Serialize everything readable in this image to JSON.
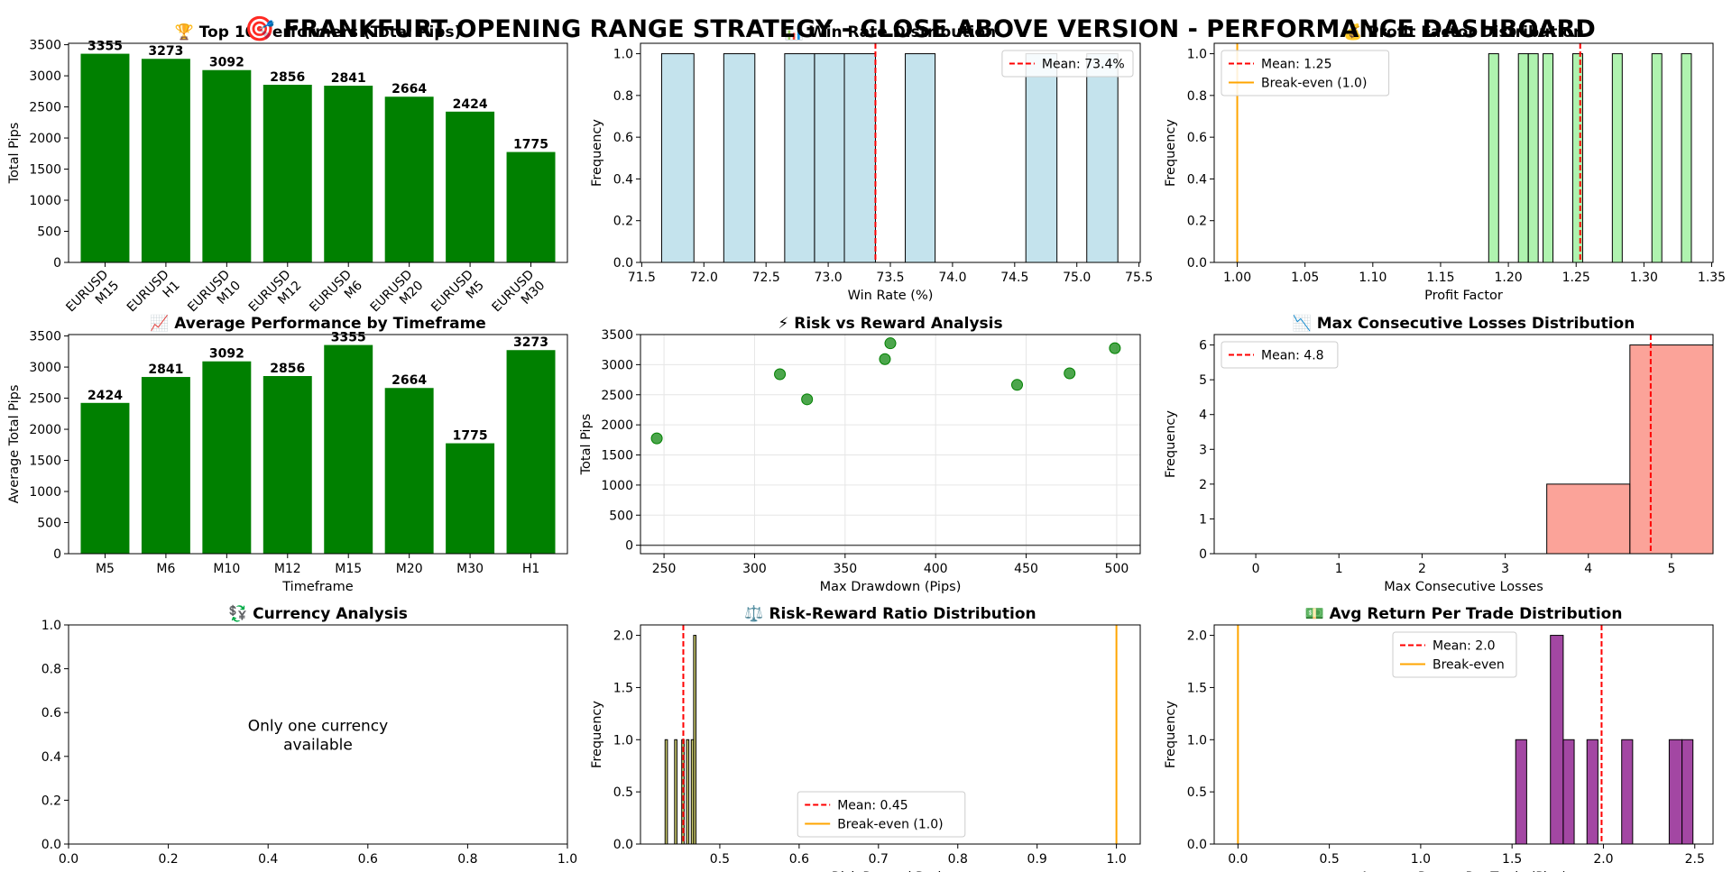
{
  "title": "🎯 FRANKFURT OPENING RANGE STRATEGY - CLOSE ABOVE VERSION - PERFORMANCE DASHBOARD",
  "chart_data": [
    {
      "id": "top10",
      "type": "bar",
      "title": "🏆 Top 10 Performers (Total Pips)",
      "xlabel": "",
      "ylabel": "Total Pips",
      "categories": [
        "EURUSD\nM15",
        "EURUSD\nH1",
        "EURUSD\nM10",
        "EURUSD\nM12",
        "EURUSD\nM6",
        "EURUSD\nM20",
        "EURUSD\nM5",
        "EURUSD\nM30"
      ],
      "values": [
        3355,
        3273,
        3092,
        2856,
        2841,
        2664,
        2424,
        1775
      ],
      "value_labels": [
        "3355",
        "3273",
        "3092",
        "2856",
        "2841",
        "2664",
        "2424",
        "1775"
      ],
      "ylim": [
        0,
        3523
      ],
      "yticks": [
        0,
        500,
        1000,
        1500,
        2000,
        2500,
        3000,
        3500
      ],
      "bar_color": "#008000",
      "rotated_xticks": true
    },
    {
      "id": "winrate",
      "type": "histogram",
      "title": "📊 Win Rate Distribution",
      "xlabel": "Win Rate (%)",
      "ylabel": "Frequency",
      "xlim": [
        71.49,
        75.51
      ],
      "ylim": [
        0,
        1.05
      ],
      "xticks": [
        71.5,
        72.0,
        72.5,
        73.0,
        73.5,
        74.0,
        74.5,
        75.0,
        75.5
      ],
      "xtick_labels": [
        "71.5",
        "72.0",
        "72.5",
        "73.0",
        "73.5",
        "74.0",
        "74.5",
        "75.0",
        "75.5"
      ],
      "yticks": [
        0,
        0.2,
        0.4,
        0.6,
        0.8,
        1.0
      ],
      "ytick_labels": [
        "0.0",
        "0.2",
        "0.4",
        "0.6",
        "0.8",
        "1.0"
      ],
      "bins": [
        [
          71.66,
          71.92,
          1
        ],
        [
          72.16,
          72.41,
          1
        ],
        [
          72.65,
          72.89,
          1
        ],
        [
          72.89,
          73.13,
          1
        ],
        [
          73.13,
          73.38,
          1
        ],
        [
          73.62,
          73.86,
          1
        ],
        [
          74.59,
          74.84,
          1
        ],
        [
          75.08,
          75.33,
          1
        ]
      ],
      "bar_color": "#add8e6",
      "lines": [
        {
          "x": 73.38,
          "color": "#ff0000",
          "dash": true,
          "label": "Mean: 73.4%"
        }
      ],
      "legend": "upper-right"
    },
    {
      "id": "profitfactor",
      "type": "histogram",
      "title": "💰 Profit Factor Distribution",
      "xlabel": "Profit Factor",
      "ylabel": "Frequency",
      "xlim": [
        0.983,
        1.351
      ],
      "ylim": [
        0,
        1.05
      ],
      "xticks": [
        1.0,
        1.05,
        1.1,
        1.15,
        1.2,
        1.25,
        1.3,
        1.35
      ],
      "xtick_labels": [
        "1.00",
        "1.05",
        "1.10",
        "1.15",
        "1.20",
        "1.25",
        "1.30",
        "1.35"
      ],
      "yticks": [
        0,
        0.2,
        0.4,
        0.6,
        0.8,
        1.0
      ],
      "ytick_labels": [
        "0.0",
        "0.2",
        "0.4",
        "0.6",
        "0.8",
        "1.0"
      ],
      "bins": [
        [
          1.1855,
          1.1928,
          1
        ],
        [
          1.2074,
          1.2147,
          1
        ],
        [
          1.2147,
          1.222,
          1
        ],
        [
          1.2256,
          1.2329,
          1
        ],
        [
          1.2475,
          1.2548,
          1
        ],
        [
          1.2767,
          1.284,
          1
        ],
        [
          1.3059,
          1.3132,
          1
        ],
        [
          1.3277,
          1.335,
          1
        ]
      ],
      "bar_color": "#90ee90",
      "lines": [
        {
          "x": 1.253,
          "color": "#ff0000",
          "dash": true,
          "label": "Mean: 1.25"
        },
        {
          "x": 1.0,
          "color": "#ffa500",
          "dash": false,
          "label": "Break-even (1.0)"
        }
      ],
      "legend": "upper-left"
    },
    {
      "id": "timeframe",
      "type": "bar",
      "title": "📈 Average Performance by Timeframe",
      "xlabel": "Timeframe",
      "ylabel": "Average Total Pips",
      "categories": [
        "M5",
        "M6",
        "M10",
        "M12",
        "M15",
        "M20",
        "M30",
        "H1"
      ],
      "values": [
        2424,
        2841,
        3092,
        2856,
        3355,
        2664,
        1775,
        3273
      ],
      "value_labels": [
        "2424",
        "2841",
        "3092",
        "2856",
        "3355",
        "2664",
        "1775",
        "3273"
      ],
      "ylim": [
        0,
        3523
      ],
      "yticks": [
        0,
        500,
        1000,
        1500,
        2000,
        2500,
        3000,
        3500
      ],
      "bar_color": "#008000",
      "rotated_xticks": false
    },
    {
      "id": "riskreward",
      "type": "scatter",
      "title": "⚡ Risk vs Reward Analysis",
      "xlabel": "Max Drawdown (Pips)",
      "ylabel": "Total Pips",
      "xlim": [
        237,
        513
      ],
      "ylim": [
        -140,
        3500
      ],
      "xticks": [
        250,
        300,
        350,
        400,
        450,
        500
      ],
      "yticks": [
        0,
        500,
        1000,
        1500,
        2000,
        2500,
        3000,
        3500
      ],
      "points": [
        [
          246,
          1775
        ],
        [
          314,
          2841
        ],
        [
          329,
          2424
        ],
        [
          372,
          3092
        ],
        [
          375,
          3355
        ],
        [
          445,
          2664
        ],
        [
          474,
          2856
        ],
        [
          499,
          3273
        ]
      ],
      "point_color": "#008000",
      "hline": 0,
      "grid": true
    },
    {
      "id": "consecutive",
      "type": "histogram",
      "title": "📉 Max Consecutive Losses Distribution",
      "xlabel": "Max Consecutive Losses",
      "ylabel": "Frequency",
      "xlim": [
        -0.5,
        5.5
      ],
      "ylim": [
        0,
        6.3
      ],
      "xticks": [
        0,
        1,
        2,
        3,
        4,
        5
      ],
      "xtick_labels": [
        "0",
        "1",
        "2",
        "3",
        "4",
        "5"
      ],
      "yticks": [
        0,
        1,
        2,
        3,
        4,
        5,
        6
      ],
      "ytick_labels": [
        "0",
        "1",
        "2",
        "3",
        "4",
        "5",
        "6"
      ],
      "bins": [
        [
          3.5,
          4.5,
          2
        ],
        [
          4.5,
          5.5,
          6
        ]
      ],
      "bar_color": "#fa8072",
      "lines": [
        {
          "x": 4.75,
          "color": "#ff0000",
          "dash": true,
          "label": "Mean: 4.8"
        }
      ],
      "legend": "upper-left"
    },
    {
      "id": "currency",
      "type": "empty",
      "title": "💱 Currency Analysis",
      "message": "Only one currency\navailable",
      "xlim": [
        0,
        1
      ],
      "ylim": [
        0,
        1
      ],
      "xticks": [
        0,
        0.2,
        0.4,
        0.6,
        0.8,
        1.0
      ],
      "xtick_labels": [
        "0.0",
        "0.2",
        "0.4",
        "0.6",
        "0.8",
        "1.0"
      ],
      "yticks": [
        0,
        0.2,
        0.4,
        0.6,
        0.8,
        1.0
      ],
      "ytick_labels": [
        "0.0",
        "0.2",
        "0.4",
        "0.6",
        "0.8",
        "1.0"
      ]
    },
    {
      "id": "rrratio",
      "type": "histogram",
      "title": "⚖️ Risk-Reward Ratio Distribution",
      "xlabel": "Risk Reward Ratio",
      "ylabel": "Frequency",
      "xlim": [
        0.4,
        1.03
      ],
      "ylim": [
        0,
        2.1
      ],
      "xticks": [
        0.5,
        0.6,
        0.7,
        0.8,
        0.9,
        1.0
      ],
      "xtick_labels": [
        "0.5",
        "0.6",
        "0.7",
        "0.8",
        "0.9",
        "1.0"
      ],
      "yticks": [
        0,
        0.5,
        1.0,
        1.5,
        2.0
      ],
      "ytick_labels": [
        "0.0",
        "0.5",
        "1.0",
        "1.5",
        "2.0"
      ],
      "bins": [
        [
          0.431,
          0.434,
          1
        ],
        [
          0.443,
          0.446,
          1
        ],
        [
          0.452,
          0.455,
          1
        ],
        [
          0.458,
          0.461,
          1
        ],
        [
          0.464,
          0.467,
          1
        ],
        [
          0.467,
          0.47,
          2
        ]
      ],
      "bar_color": "#b5b535",
      "lines": [
        {
          "x": 0.454,
          "color": "#ff0000",
          "dash": true,
          "label": "Mean: 0.45"
        },
        {
          "x": 1.0,
          "color": "#ffa500",
          "dash": false,
          "label": "Break-even (1.0)"
        }
      ],
      "legend": "lower-center"
    },
    {
      "id": "avgreturn",
      "type": "histogram",
      "title": "💵 Avg Return Per Trade Distribution",
      "xlabel": "Average Return Per Trade (Pips)",
      "ylabel": "Frequency",
      "xlim": [
        -0.13,
        2.6
      ],
      "ylim": [
        0,
        2.1
      ],
      "xticks": [
        0,
        0.5,
        1.0,
        1.5,
        2.0,
        2.5
      ],
      "xtick_labels": [
        "0.0",
        "0.5",
        "1.0",
        "1.5",
        "2.0",
        "2.5"
      ],
      "yticks": [
        0,
        0.5,
        1.0,
        1.5,
        2.0
      ],
      "ytick_labels": [
        "0.0",
        "0.5",
        "1.0",
        "1.5",
        "2.0"
      ],
      "bins": [
        [
          1.52,
          1.58,
          1
        ],
        [
          1.71,
          1.78,
          2
        ],
        [
          1.78,
          1.84,
          1
        ],
        [
          1.91,
          1.97,
          1
        ],
        [
          2.1,
          2.16,
          1
        ],
        [
          2.36,
          2.43,
          1
        ],
        [
          2.43,
          2.49,
          1
        ]
      ],
      "bar_color": "#800080",
      "lines": [
        {
          "x": 1.99,
          "color": "#ff0000",
          "dash": true,
          "label": "Mean: 2.0"
        },
        {
          "x": 0.0,
          "color": "#ffa500",
          "dash": false,
          "label": "Break-even"
        }
      ],
      "legend": "upper-center"
    }
  ]
}
